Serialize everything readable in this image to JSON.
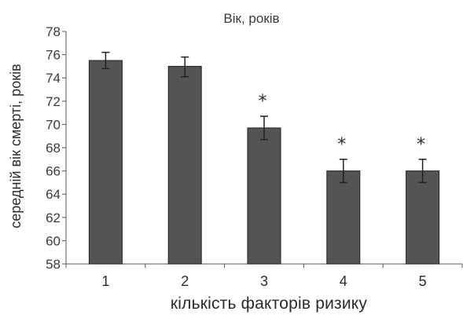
{
  "chart_data": {
    "type": "bar",
    "title": "Вік, років",
    "xlabel": "кількість факторів ризику",
    "ylabel": "середній вік смерті, років",
    "categories": [
      "1",
      "2",
      "3",
      "4",
      "5"
    ],
    "values": [
      75.5,
      75.0,
      69.7,
      66.0,
      66.0
    ],
    "error_high": [
      76.2,
      75.8,
      70.7,
      67.0,
      67.0
    ],
    "error_low": [
      74.8,
      74.1,
      68.7,
      65.0,
      65.0
    ],
    "significance_marks": [
      "",
      "",
      "*",
      "*",
      "*"
    ],
    "ylim": [
      58,
      78
    ],
    "yticks": [
      58,
      60,
      62,
      64,
      66,
      68,
      70,
      72,
      74,
      76,
      78
    ],
    "grid": false,
    "legend": "none",
    "bar_color": "#545454",
    "bar_edge_color": "#222222"
  }
}
